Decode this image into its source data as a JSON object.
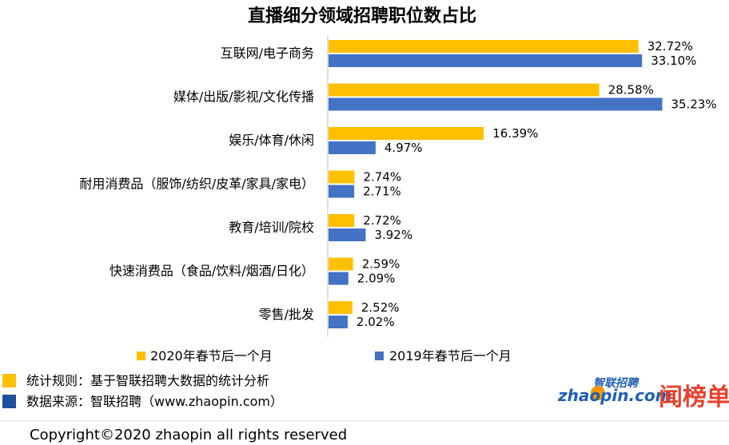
{
  "colors": {
    "series2020": "#FFC000",
    "series2019": "#4472C4",
    "note_icon_rule": "#FFC000",
    "note_icon_source": "#1F4E9E",
    "axis": "#BFBFBF",
    "logo_blue": "#1F5FB4",
    "logo_orange": "#F39800",
    "logo_red": "#E8412C"
  },
  "chart_data": {
    "type": "bar",
    "orientation": "horizontal",
    "title": "直播细分领域招聘职位数占比",
    "categories": [
      "互联网/电子商务",
      "媒体/出版/影视/文化传播",
      "娱乐/体育/休闲",
      "耐用消费品（服饰/纺织/皮革/家具/家电）",
      "教育/培训/院校",
      "快速消费品（食品/饮料/烟酒/日化）",
      "零售/批发"
    ],
    "series": [
      {
        "name": "2020年春节后一个月",
        "values": [
          32.72,
          28.58,
          16.39,
          2.74,
          2.72,
          2.59,
          2.52
        ],
        "labels": [
          "32.72%",
          "28.58%",
          "16.39%",
          "2.74%",
          "2.72%",
          "2.59%",
          "2.52%"
        ]
      },
      {
        "name": "2019年春节后一个月",
        "values": [
          33.1,
          35.23,
          4.97,
          2.71,
          3.92,
          2.09,
          2.02
        ],
        "labels": [
          "33.10%",
          "35.23%",
          "4.97%",
          "2.71%",
          "3.92%",
          "2.09%",
          "2.02%"
        ]
      }
    ],
    "unit": "%",
    "xlim": [
      0,
      40
    ],
    "grid": false,
    "legend_position": "bottom"
  },
  "notes": {
    "rule": "统计规则：基于智联招聘大数据的统计分析",
    "source": "数据来源：智联招聘（www.zhaopin.com）"
  },
  "logos": {
    "zhaopin_wordmark": "zhaopin.com",
    "zhaopin_cn": "智联招聘",
    "ranking_mark": "闻榜单"
  },
  "footer": {
    "copyright": "Copyright©2020 zhaopin all rights reserved"
  }
}
